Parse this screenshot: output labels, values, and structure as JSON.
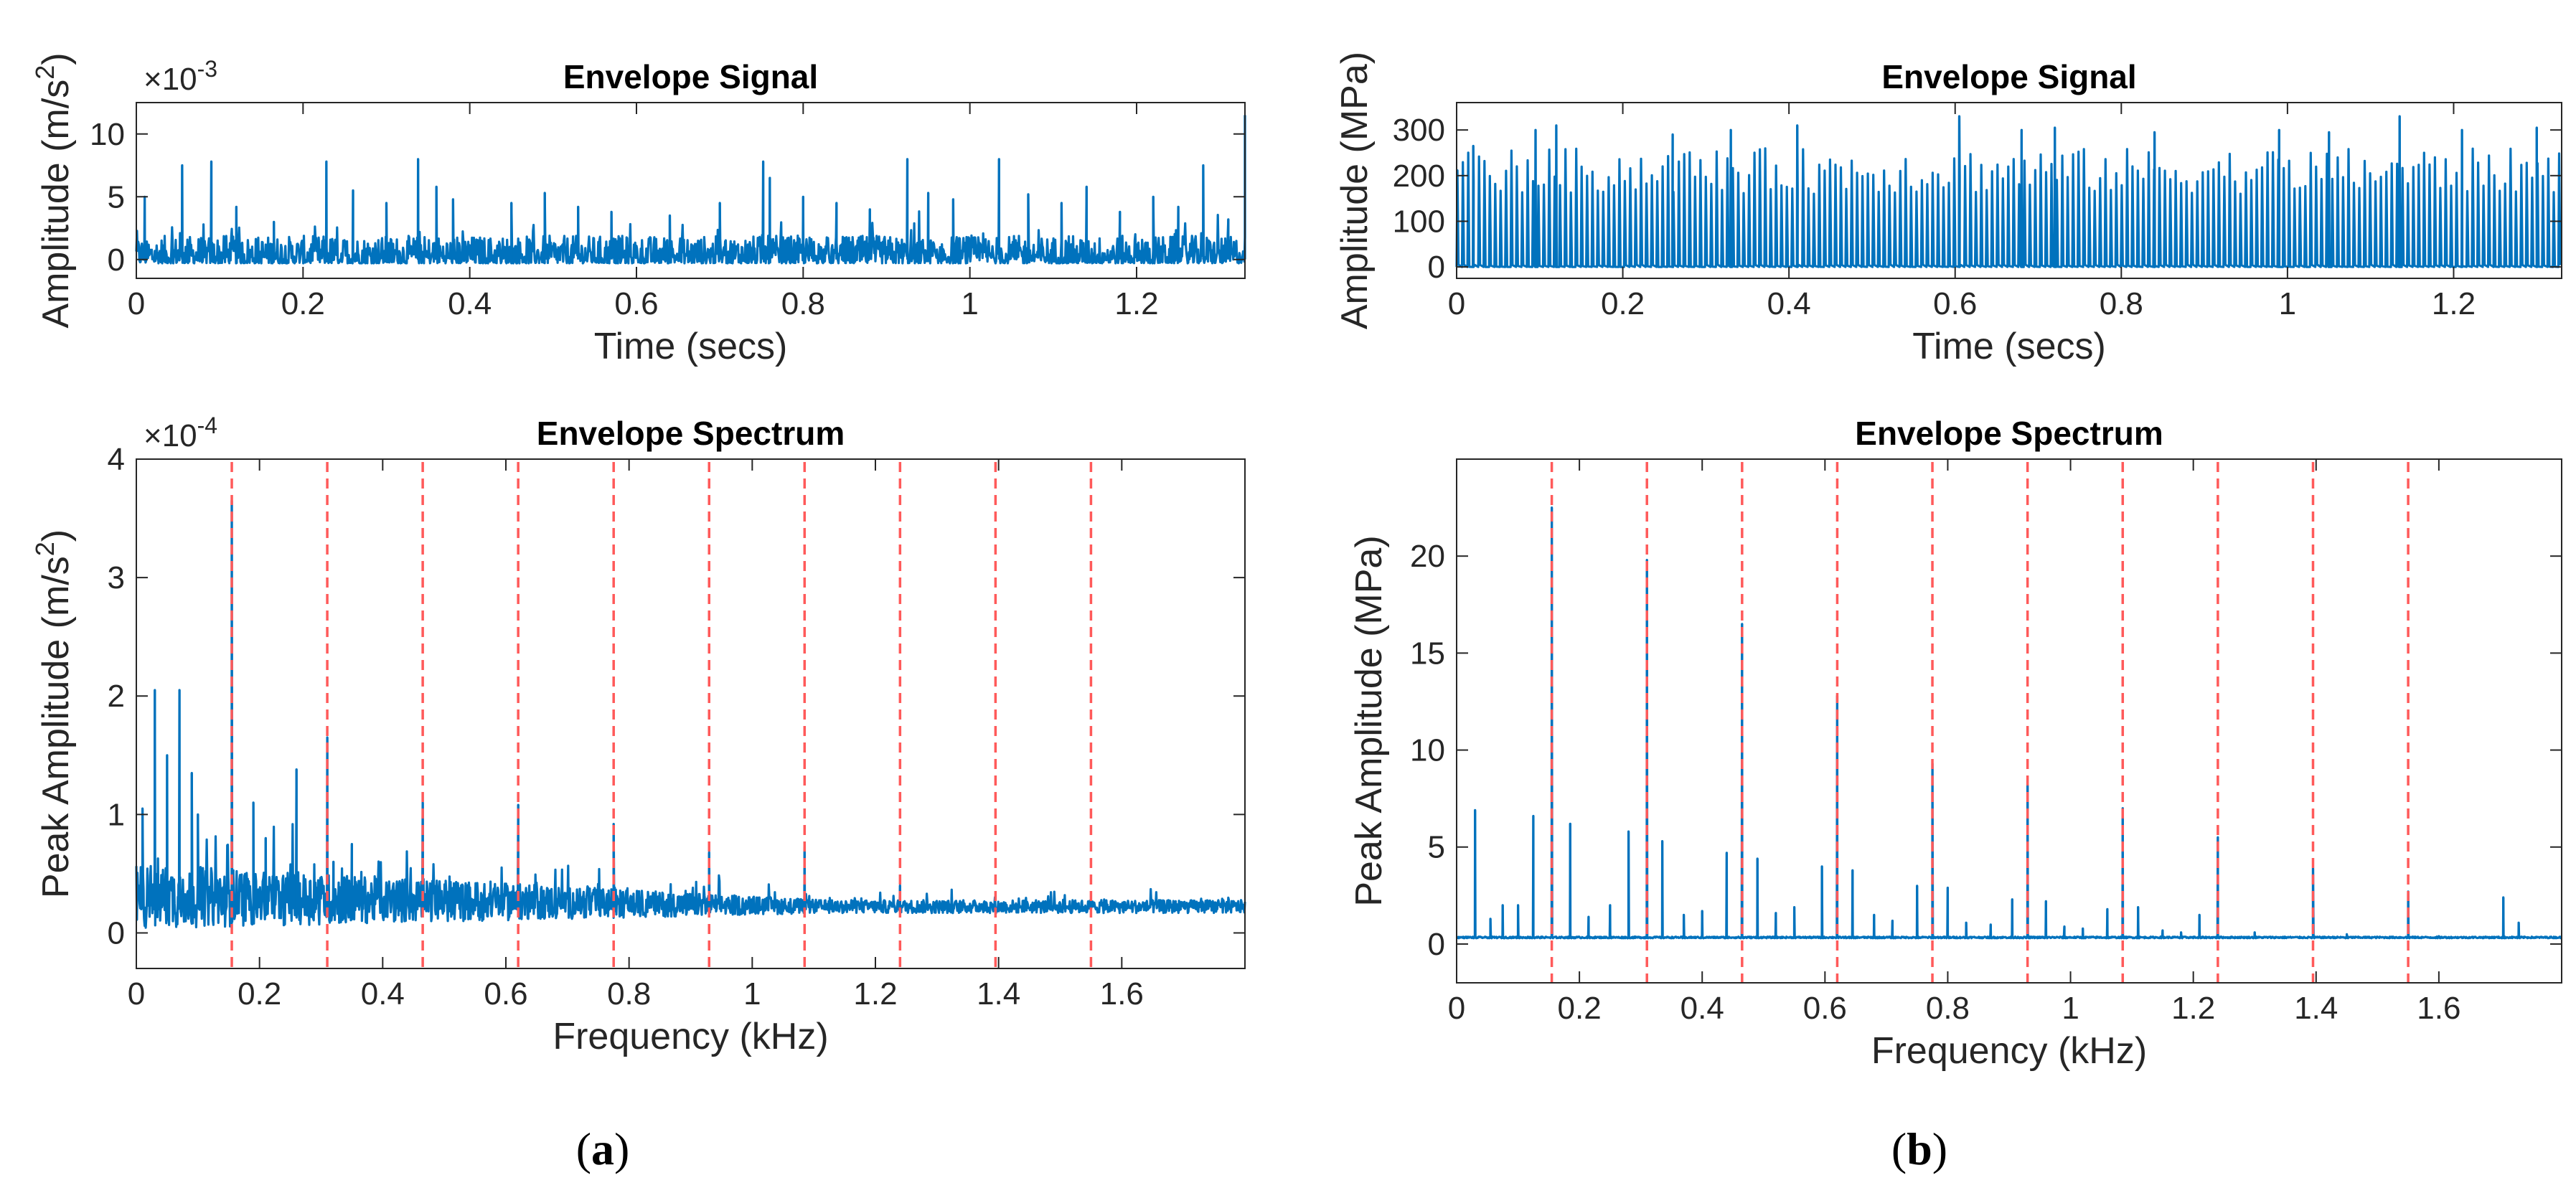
{
  "panel_labels": {
    "a": {
      "open": "(",
      "letter": "a",
      "close": ")"
    },
    "b": {
      "open": "(",
      "letter": "b",
      "close": ")"
    }
  },
  "colors": {
    "signal": "#0072BD",
    "harmonic_marker": "#FF5A5A",
    "axis": "#262626"
  },
  "chart_data": [
    {
      "id": "a-signal",
      "type": "line",
      "title": "Envelope Signal",
      "xlabel": "Time (secs)",
      "ylabel": "Amplitude (m/s",
      "ylabel_sup": "2",
      "ylabel_close": ")",
      "exponent": {
        "base": "×10",
        "power": "-3"
      },
      "xlim": [
        0,
        1.33
      ],
      "ylim": [
        -1.5,
        12.5
      ],
      "xticks": [
        0,
        0.2,
        0.4,
        0.6,
        0.8,
        1,
        1.2
      ],
      "xtick_labels": [
        "0",
        "0.2",
        "0.4",
        "0.6",
        "0.8",
        "1",
        "1.2"
      ],
      "yticks": [
        0,
        5,
        10
      ],
      "ytick_labels": [
        "0",
        "5",
        "10"
      ],
      "baseline": 0,
      "noise_level": 2.2,
      "peaks": [
        [
          0.01,
          5
        ],
        [
          0.055,
          7.5
        ],
        [
          0.09,
          7.8
        ],
        [
          0.12,
          4.2
        ],
        [
          0.165,
          3.0
        ],
        [
          0.228,
          7.8
        ],
        [
          0.26,
          5.5
        ],
        [
          0.3,
          4.5
        ],
        [
          0.338,
          8.0
        ],
        [
          0.36,
          5.8
        ],
        [
          0.38,
          4.8
        ],
        [
          0.45,
          4.5
        ],
        [
          0.49,
          5.3
        ],
        [
          0.53,
          4.2
        ],
        [
          0.57,
          3.8
        ],
        [
          0.64,
          3.5
        ],
        [
          0.7,
          4.5
        ],
        [
          0.752,
          7.8
        ],
        [
          0.76,
          6.5
        ],
        [
          0.8,
          5.0
        ],
        [
          0.84,
          4.5
        ],
        [
          0.88,
          4.0
        ],
        [
          0.925,
          8.0
        ],
        [
          0.95,
          5.3
        ],
        [
          0.98,
          4.8
        ],
        [
          1.035,
          8.0
        ],
        [
          1.07,
          5.2
        ],
        [
          1.11,
          4.5
        ],
        [
          1.14,
          5.8
        ],
        [
          1.18,
          3.8
        ],
        [
          1.22,
          5.0
        ],
        [
          1.25,
          4.2
        ],
        [
          1.28,
          7.5
        ],
        [
          1.31,
          3.2
        ],
        [
          1.33,
          11.5
        ]
      ],
      "series": [
        {
          "name": "envelope",
          "color": "#0072BD"
        }
      ]
    },
    {
      "id": "a-spectrum",
      "type": "line",
      "title": "Envelope Spectrum",
      "xlabel": "Frequency (kHz)",
      "ylabel": "Peak Amplitude (m/s",
      "ylabel_sup": "2",
      "ylabel_close": ")",
      "exponent": {
        "base": "×10",
        "power": "-4"
      },
      "xlim": [
        0,
        1.8
      ],
      "ylim": [
        -0.3,
        4.0
      ],
      "xticks": [
        0,
        0.2,
        0.4,
        0.6,
        0.8,
        1,
        1.2,
        1.4,
        1.6
      ],
      "xtick_labels": [
        "0",
        "0.2",
        "0.4",
        "0.6",
        "0.8",
        "1",
        "1.2",
        "1.4",
        "1.6"
      ],
      "yticks": [
        0,
        1,
        2,
        3,
        4
      ],
      "ytick_labels": [
        "0",
        "1",
        "2",
        "3",
        "4"
      ],
      "baseline": 0.2,
      "noise_level": 0.55,
      "harmonic_markers": [
        0.155,
        0.31,
        0.465,
        0.62,
        0.775,
        0.93,
        1.085,
        1.24,
        1.395,
        1.55
      ],
      "peaks": [
        [
          0.155,
          3.65
        ],
        [
          0.31,
          1.65
        ],
        [
          0.465,
          1.1
        ],
        [
          0.62,
          1.08
        ],
        [
          0.775,
          0.92
        ],
        [
          0.93,
          0.68
        ],
        [
          1.085,
          0.72
        ],
        [
          1.24,
          0.4
        ],
        [
          0.03,
          2.05
        ],
        [
          0.07,
          2.05
        ],
        [
          0.05,
          1.5
        ],
        [
          0.09,
          1.35
        ],
        [
          0.01,
          1.05
        ],
        [
          0.1,
          1.0
        ],
        [
          0.26,
          1.38
        ],
        [
          0.19,
          1.1
        ],
        [
          0.32,
          0.6
        ],
        [
          0.21,
          0.8
        ],
        [
          0.35,
          0.75
        ]
      ],
      "series": [
        {
          "name": "envelope spectrum",
          "color": "#0072BD"
        }
      ]
    },
    {
      "id": "b-signal",
      "type": "line",
      "title": "Envelope Signal",
      "xlabel": "Time (secs)",
      "ylabel": "Amplitude (MPa)",
      "xlim": [
        0,
        1.33
      ],
      "ylim": [
        -25,
        360
      ],
      "xticks": [
        0,
        0.2,
        0.4,
        0.6,
        0.8,
        1,
        1.2
      ],
      "xtick_labels": [
        "0",
        "0.2",
        "0.4",
        "0.6",
        "0.8",
        "1",
        "1.2"
      ],
      "yticks": [
        0,
        100,
        200,
        300
      ],
      "ytick_labels": [
        "0",
        "100",
        "200",
        "300"
      ],
      "baseline": 0,
      "impulse_spacing": 0.0065,
      "impulse_range": [
        160,
        260
      ],
      "peaks": [
        [
          0.02,
          265
        ],
        [
          0.095,
          300
        ],
        [
          0.12,
          310
        ],
        [
          0.26,
          290
        ],
        [
          0.33,
          300
        ],
        [
          0.41,
          310
        ],
        [
          0.605,
          330
        ],
        [
          0.68,
          300
        ],
        [
          0.72,
          305
        ],
        [
          0.84,
          295
        ],
        [
          0.99,
          300
        ],
        [
          1.05,
          295
        ],
        [
          1.135,
          330
        ],
        [
          1.21,
          300
        ],
        [
          1.3,
          305
        ]
      ],
      "series": [
        {
          "name": "envelope",
          "color": "#0072BD"
        }
      ]
    },
    {
      "id": "b-spectrum",
      "type": "line",
      "title": "Envelope Spectrum",
      "xlabel": "Frequency (kHz)",
      "ylabel": "Peak Amplitude (MPa)",
      "xlim": [
        0,
        1.8
      ],
      "ylim": [
        -2,
        25
      ],
      "xticks": [
        0,
        0.2,
        0.4,
        0.6,
        0.8,
        1,
        1.2,
        1.4,
        1.6
      ],
      "xtick_labels": [
        "0",
        "0.2",
        "0.4",
        "0.6",
        "0.8",
        "1",
        "1.2",
        "1.4",
        "1.6"
      ],
      "yticks": [
        0,
        5,
        10,
        15,
        20
      ],
      "ytick_labels": [
        "0",
        "5",
        "10",
        "15",
        "20"
      ],
      "baseline": 0.3,
      "harmonic_markers": [
        0.155,
        0.31,
        0.465,
        0.62,
        0.775,
        0.93,
        1.085,
        1.24,
        1.395,
        1.55
      ],
      "peaks": [
        [
          0.155,
          22.5
        ],
        [
          0.31,
          19.8
        ],
        [
          0.465,
          16.5
        ],
        [
          0.62,
          12.8
        ],
        [
          0.775,
          9.3
        ],
        [
          0.93,
          8.2
        ],
        [
          1.085,
          7.0
        ],
        [
          1.24,
          5.5
        ],
        [
          1.395,
          3.9
        ],
        [
          1.55,
          2.7
        ],
        [
          0.03,
          6.9
        ],
        [
          0.125,
          6.6
        ],
        [
          0.185,
          6.2
        ],
        [
          0.28,
          5.8
        ],
        [
          0.335,
          5.3
        ],
        [
          0.44,
          4.7
        ],
        [
          0.49,
          4.4
        ],
        [
          0.595,
          4.0
        ],
        [
          0.645,
          3.8
        ],
        [
          0.75,
          3.0
        ],
        [
          0.8,
          2.9
        ],
        [
          0.905,
          2.3
        ],
        [
          0.96,
          2.2
        ],
        [
          1.06,
          1.8
        ],
        [
          1.11,
          1.9
        ],
        [
          1.21,
          1.5
        ],
        [
          1.705,
          2.4
        ],
        [
          1.73,
          1.1
        ],
        [
          0.055,
          1.3
        ],
        [
          0.075,
          2.0
        ],
        [
          0.1,
          2.0
        ],
        [
          0.215,
          1.4
        ],
        [
          0.25,
          2.0
        ],
        [
          0.37,
          1.5
        ],
        [
          0.4,
          1.7
        ],
        [
          0.52,
          1.6
        ],
        [
          0.55,
          1.9
        ],
        [
          0.68,
          1.5
        ],
        [
          0.71,
          1.2
        ],
        [
          0.83,
          1.1
        ],
        [
          0.87,
          1.0
        ],
        [
          0.99,
          0.9
        ],
        [
          1.02,
          0.8
        ],
        [
          1.15,
          0.7
        ],
        [
          1.18,
          0.6
        ],
        [
          1.3,
          0.6
        ],
        [
          1.45,
          0.5
        ],
        [
          1.6,
          0.4
        ]
      ],
      "series": [
        {
          "name": "envelope spectrum",
          "color": "#0072BD"
        }
      ]
    }
  ]
}
